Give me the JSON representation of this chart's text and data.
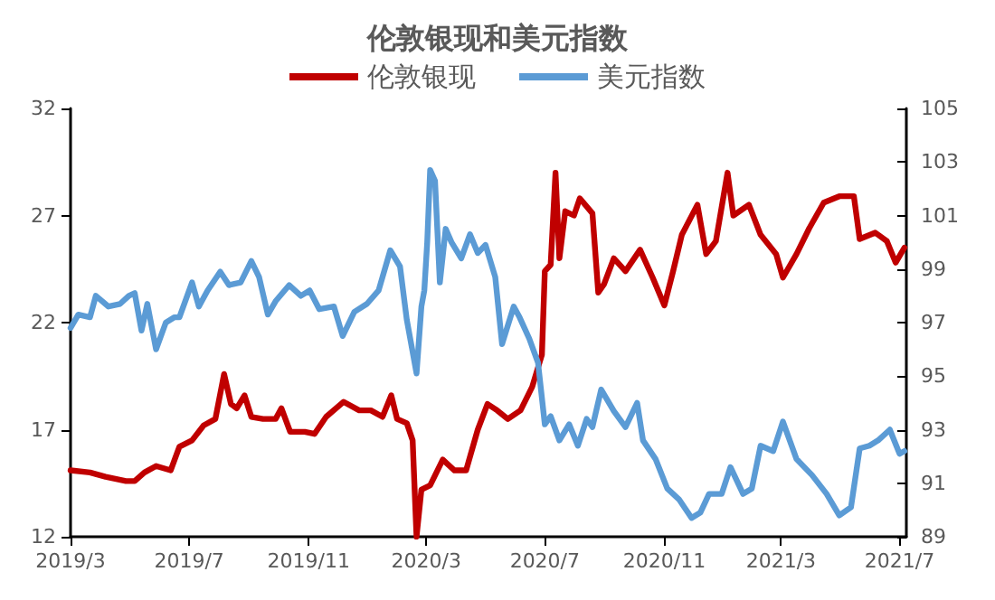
{
  "chart_data": {
    "type": "line",
    "title": "伦敦银现和美元指数",
    "legend": "top",
    "grid": false,
    "marker": "none",
    "line_style": "solid",
    "xlim": [
      "2019-03-01",
      "2021-07-08"
    ],
    "xticks": [
      {
        "value": "2019-03-01",
        "label": "2019/3"
      },
      {
        "value": "2019-07-01",
        "label": "2019/7"
      },
      {
        "value": "2019-11-01",
        "label": "2019/11"
      },
      {
        "value": "2020-03-01",
        "label": "2020/3"
      },
      {
        "value": "2020-07-01",
        "label": "2020/7"
      },
      {
        "value": "2020-11-01",
        "label": "2020/11"
      },
      {
        "value": "2021-03-01",
        "label": "2021/3"
      },
      {
        "value": "2021-07-01",
        "label": "2021/7"
      }
    ],
    "ylim": [
      12,
      32
    ],
    "yticks": [
      12,
      17,
      22,
      27,
      32
    ],
    "y2lim": [
      89,
      105
    ],
    "y2ticks": [
      89,
      91,
      93,
      95,
      97,
      99,
      101,
      103,
      105
    ],
    "series": [
      {
        "name": "伦敦银现",
        "color": "#c00000",
        "x": [
          "2019-03-01",
          "2019-03-21",
          "2019-04-06",
          "2019-04-27",
          "2019-05-06",
          "2019-05-16",
          "2019-05-28",
          "2019-06-12",
          "2019-06-21",
          "2019-07-04",
          "2019-07-16",
          "2019-07-28",
          "2019-08-06",
          "2019-08-13",
          "2019-08-19",
          "2019-08-27",
          "2019-09-03",
          "2019-09-15",
          "2019-09-28",
          "2019-10-04",
          "2019-10-13",
          "2019-10-28",
          "2019-11-07",
          "2019-11-19",
          "2019-12-07",
          "2019-12-23",
          "2020-01-04",
          "2020-01-16",
          "2020-01-25",
          "2020-01-31",
          "2020-02-10",
          "2020-02-16",
          "2020-02-20",
          "2020-02-25",
          "2020-03-05",
          "2020-03-18",
          "2020-03-30",
          "2020-04-11",
          "2020-04-23",
          "2020-05-03",
          "2020-05-13",
          "2020-05-24",
          "2020-06-06",
          "2020-06-18",
          "2020-06-28",
          "2020-07-01",
          "2020-07-07",
          "2020-07-12",
          "2020-07-16",
          "2020-07-22",
          "2020-07-31",
          "2020-08-06",
          "2020-08-19",
          "2020-08-25",
          "2020-08-31",
          "2020-09-10",
          "2020-09-22",
          "2020-10-07",
          "2020-10-20",
          "2020-11-01",
          "2020-11-10",
          "2020-11-19",
          "2020-12-05",
          "2020-12-14",
          "2020-12-24",
          "2021-01-05",
          "2021-01-11",
          "2021-01-27",
          "2021-02-08",
          "2021-02-24",
          "2021-03-03",
          "2021-03-17",
          "2021-03-30",
          "2021-04-14",
          "2021-04-30",
          "2021-05-15",
          "2021-05-21",
          "2021-06-06",
          "2021-06-18",
          "2021-06-27",
          "2021-07-06"
        ],
        "values": [
          15.1,
          15.0,
          14.8,
          14.6,
          14.6,
          15.0,
          15.3,
          15.1,
          16.2,
          16.5,
          17.2,
          17.5,
          19.6,
          18.2,
          18.0,
          18.6,
          17.6,
          17.5,
          17.5,
          18.0,
          16.9,
          16.9,
          16.8,
          17.6,
          18.3,
          17.9,
          17.9,
          17.6,
          18.6,
          17.5,
          17.3,
          16.5,
          12.0,
          14.2,
          14.4,
          15.6,
          15.1,
          15.1,
          17.0,
          18.2,
          17.9,
          17.5,
          17.9,
          19.0,
          20.5,
          24.4,
          24.7,
          29.0,
          25.0,
          27.2,
          27.0,
          27.8,
          27.1,
          23.4,
          23.8,
          25.0,
          24.4,
          25.4,
          24.1,
          22.8,
          24.4,
          26.1,
          27.5,
          25.2,
          25.8,
          29.0,
          27.0,
          27.5,
          26.1,
          25.2,
          24.1,
          25.2,
          26.4,
          27.6,
          27.9,
          27.9,
          25.9,
          26.2,
          25.8,
          24.8,
          25.5
        ]
      },
      {
        "name": "美元指数",
        "color": "#5b9bd5",
        "axis": "y2",
        "x": [
          "2019-03-01",
          "2019-03-09",
          "2019-03-21",
          "2019-03-27",
          "2019-04-09",
          "2019-04-21",
          "2019-04-30",
          "2019-05-06",
          "2019-05-13",
          "2019-05-19",
          "2019-05-28",
          "2019-06-07",
          "2019-06-16",
          "2019-06-21",
          "2019-07-04",
          "2019-07-11",
          "2019-07-20",
          "2019-08-02",
          "2019-08-11",
          "2019-08-23",
          "2019-09-03",
          "2019-09-11",
          "2019-09-20",
          "2019-09-28",
          "2019-10-12",
          "2019-10-24",
          "2019-11-02",
          "2019-11-12",
          "2019-11-27",
          "2019-12-06",
          "2019-12-18",
          "2019-12-31",
          "2020-01-12",
          "2020-01-24",
          "2020-02-03",
          "2020-02-10",
          "2020-02-20",
          "2020-02-25",
          "2020-02-28",
          "2020-03-02",
          "2020-03-05",
          "2020-03-10",
          "2020-03-15",
          "2020-03-21",
          "2020-03-27",
          "2020-04-06",
          "2020-04-15",
          "2020-04-23",
          "2020-05-01",
          "2020-05-11",
          "2020-05-18",
          "2020-05-24",
          "2020-05-30",
          "2020-06-05",
          "2020-06-15",
          "2020-06-24",
          "2020-07-01",
          "2020-07-07",
          "2020-07-16",
          "2020-07-26",
          "2020-08-04",
          "2020-08-13",
          "2020-08-19",
          "2020-08-28",
          "2020-09-10",
          "2020-09-22",
          "2020-10-04",
          "2020-10-10",
          "2020-10-23",
          "2020-11-04",
          "2020-11-16",
          "2020-11-29",
          "2020-12-08",
          "2020-12-17",
          "2020-12-30",
          "2021-01-08",
          "2021-01-21",
          "2021-01-30",
          "2021-02-08",
          "2021-02-21",
          "2021-03-03",
          "2021-03-17",
          "2021-04-02",
          "2021-04-17",
          "2021-04-30",
          "2021-05-12",
          "2021-05-21",
          "2021-05-31",
          "2021-06-09",
          "2021-06-21",
          "2021-07-01",
          "2021-07-06"
        ],
        "values": [
          96.8,
          97.3,
          97.2,
          98.0,
          97.6,
          97.7,
          98.0,
          98.1,
          96.7,
          97.7,
          96.0,
          97.0,
          97.2,
          97.2,
          98.5,
          97.6,
          98.2,
          98.9,
          98.4,
          98.5,
          99.3,
          98.7,
          97.3,
          97.8,
          98.4,
          98.0,
          98.2,
          97.5,
          97.6,
          96.5,
          97.4,
          97.7,
          98.2,
          99.7,
          99.1,
          97.1,
          95.1,
          97.6,
          98.2,
          100.0,
          102.7,
          102.3,
          98.5,
          100.5,
          100.0,
          99.4,
          100.3,
          99.6,
          99.9,
          98.7,
          96.2,
          96.9,
          97.6,
          97.2,
          96.4,
          95.5,
          93.2,
          93.5,
          92.6,
          93.2,
          92.4,
          93.4,
          93.1,
          94.5,
          93.7,
          93.1,
          94.0,
          92.6,
          91.9,
          90.8,
          90.4,
          89.7,
          89.9,
          90.6,
          90.6,
          91.6,
          90.6,
          90.8,
          92.4,
          92.2,
          93.3,
          91.9,
          91.3,
          90.6,
          89.8,
          90.1,
          92.3,
          92.4,
          92.6,
          93.0,
          92.1,
          92.2
        ]
      }
    ]
  }
}
